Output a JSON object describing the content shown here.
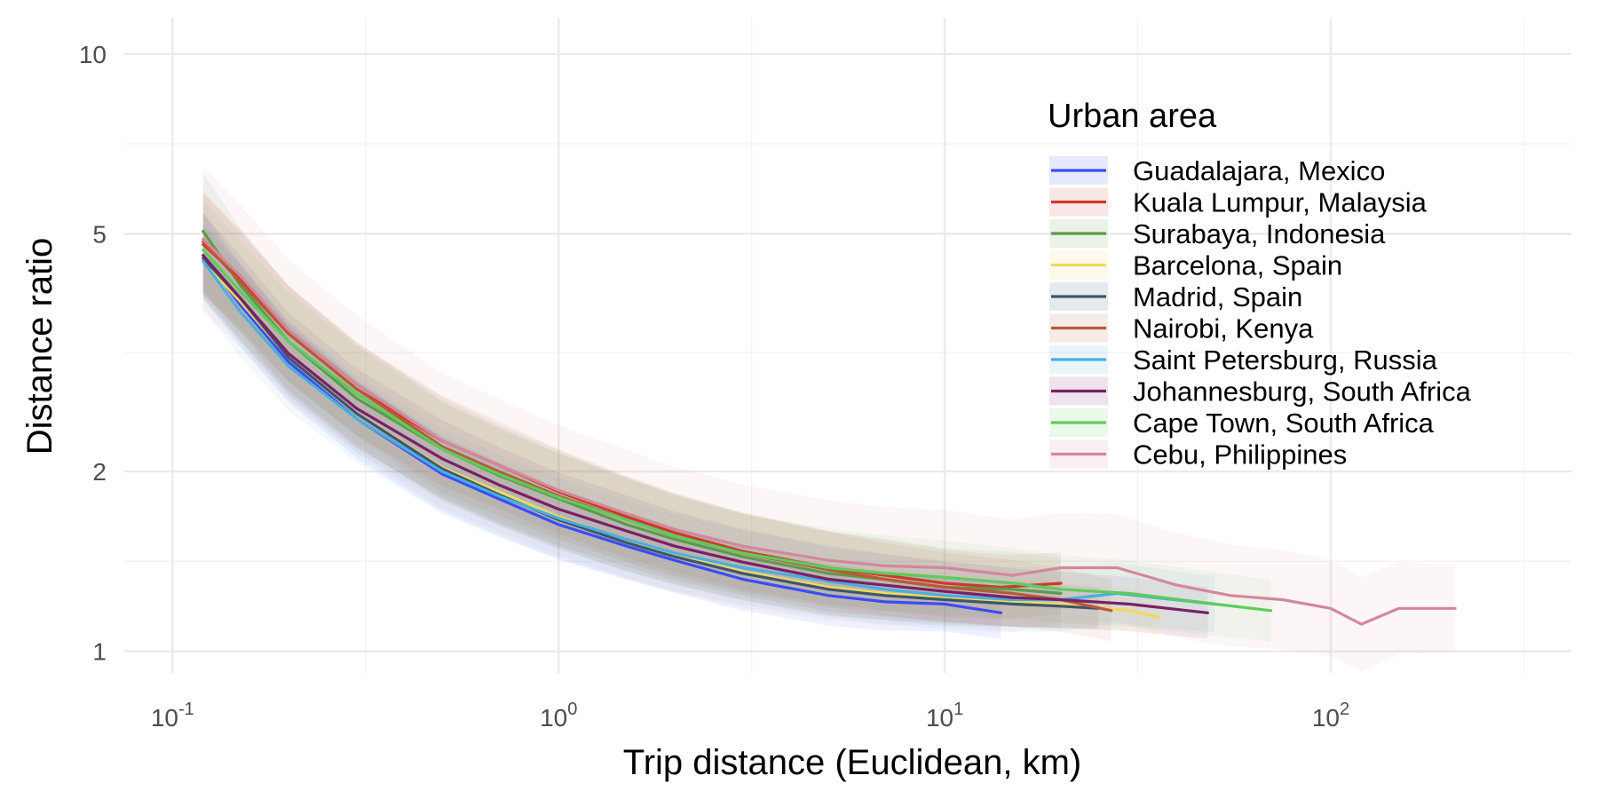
{
  "chart_data": {
    "type": "line",
    "title": "",
    "xlabel": "Trip distance (Euclidean, km)",
    "ylabel": "Distance ratio",
    "x_scale": "log10",
    "y_scale": "log10",
    "xlim": [
      0.075,
      420
    ],
    "ylim": [
      0.92,
      11.5
    ],
    "grid": true,
    "legend_title": "Urban area",
    "legend_position": "top-right (inside plot)",
    "x_ticks": [
      {
        "value": 0.1,
        "base": "10",
        "exp": "-1"
      },
      {
        "value": 1,
        "base": "10",
        "exp": "0"
      },
      {
        "value": 10,
        "base": "10",
        "exp": "1"
      },
      {
        "value": 100,
        "base": "10",
        "exp": "2"
      }
    ],
    "y_ticks": [
      {
        "value": 1,
        "label": "1"
      },
      {
        "value": 2,
        "label": "2"
      },
      {
        "value": 5,
        "label": "5"
      },
      {
        "value": 10,
        "label": "10"
      }
    ],
    "series": [
      {
        "name": "Guadalajara, Mexico",
        "color": "#3b4cf5",
        "x": [
          0.12,
          0.15,
          0.2,
          0.3,
          0.5,
          0.7,
          1,
          1.5,
          2,
          3,
          5,
          7,
          10,
          14
        ],
        "y": [
          4.6,
          3.8,
          3.05,
          2.45,
          1.98,
          1.8,
          1.63,
          1.5,
          1.42,
          1.32,
          1.24,
          1.21,
          1.2,
          1.16
        ],
        "band_width": 0.1
      },
      {
        "name": "Kuala Lumpur, Malaysia",
        "color": "#cc3a2a",
        "x": [
          0.12,
          0.15,
          0.2,
          0.3,
          0.5,
          0.7,
          1,
          1.5,
          2,
          3,
          5,
          7,
          10,
          14,
          20
        ],
        "y": [
          4.8,
          4.2,
          3.4,
          2.75,
          2.25,
          2.05,
          1.85,
          1.68,
          1.58,
          1.47,
          1.38,
          1.34,
          1.3,
          1.28,
          1.3
        ],
        "band_width": 0.12
      },
      {
        "name": "Surabaya, Indonesia",
        "color": "#5c9a4c",
        "x": [
          0.12,
          0.15,
          0.2,
          0.3,
          0.5,
          0.7,
          1,
          1.5,
          2,
          3,
          5,
          7,
          10,
          15,
          20
        ],
        "y": [
          5.05,
          4.1,
          3.3,
          2.65,
          2.18,
          1.97,
          1.8,
          1.63,
          1.54,
          1.44,
          1.35,
          1.32,
          1.28,
          1.27,
          1.25
        ],
        "band_width": 0.14
      },
      {
        "name": "Barcelona, Spain",
        "color": "#f0d960",
        "x": [
          0.12,
          0.15,
          0.2,
          0.3,
          0.5,
          0.7,
          1,
          1.5,
          2,
          3,
          5,
          7,
          10,
          15,
          20,
          30,
          36
        ],
        "y": [
          4.5,
          3.85,
          3.1,
          2.5,
          2.03,
          1.85,
          1.68,
          1.53,
          1.45,
          1.36,
          1.28,
          1.25,
          1.23,
          1.21,
          1.2,
          1.17,
          1.14
        ],
        "band_width": 0.08
      },
      {
        "name": "Madrid, Spain",
        "color": "#3d566e",
        "x": [
          0.12,
          0.15,
          0.2,
          0.3,
          0.5,
          0.7,
          1,
          1.5,
          2,
          3,
          5,
          7,
          10,
          15,
          20,
          25
        ],
        "y": [
          4.55,
          3.9,
          3.1,
          2.5,
          2.02,
          1.83,
          1.66,
          1.52,
          1.44,
          1.35,
          1.27,
          1.24,
          1.22,
          1.2,
          1.19,
          1.18
        ],
        "band_width": 0.08
      },
      {
        "name": "Nairobi, Kenya",
        "color": "#b85a35",
        "x": [
          0.12,
          0.15,
          0.2,
          0.3,
          0.5,
          0.7,
          1,
          1.5,
          2,
          3,
          5,
          7,
          10,
          15,
          20,
          27
        ],
        "y": [
          4.85,
          4.15,
          3.4,
          2.75,
          2.2,
          2.0,
          1.82,
          1.66,
          1.56,
          1.46,
          1.37,
          1.32,
          1.28,
          1.25,
          1.22,
          1.17
        ],
        "band_width": 0.12
      },
      {
        "name": "Saint Petersburg, Russia",
        "color": "#4aaee0",
        "x": [
          0.12,
          0.15,
          0.2,
          0.3,
          0.5,
          0.7,
          1,
          1.5,
          2,
          3,
          5,
          7,
          10,
          15,
          20,
          28,
          35,
          50
        ],
        "y": [
          4.5,
          3.7,
          3.0,
          2.45,
          2.0,
          1.82,
          1.67,
          1.54,
          1.46,
          1.38,
          1.31,
          1.27,
          1.24,
          1.22,
          1.22,
          1.25,
          1.23,
          1.2
        ],
        "band_width": 0.11
      },
      {
        "name": "Johannesburg, South Africa",
        "color": "#7b1f68",
        "x": [
          0.12,
          0.15,
          0.2,
          0.3,
          0.5,
          0.7,
          1,
          1.5,
          2,
          3,
          5,
          7,
          10,
          15,
          20,
          30,
          48
        ],
        "y": [
          4.6,
          3.9,
          3.15,
          2.55,
          2.1,
          1.9,
          1.73,
          1.59,
          1.5,
          1.41,
          1.32,
          1.29,
          1.26,
          1.23,
          1.22,
          1.2,
          1.16
        ],
        "band_width": 0.1
      },
      {
        "name": "Cape Town, South Africa",
        "color": "#5dcc5a",
        "x": [
          0.12,
          0.15,
          0.2,
          0.3,
          0.5,
          0.7,
          1,
          1.5,
          2,
          3,
          5,
          7,
          10,
          15,
          20,
          30,
          50,
          70
        ],
        "y": [
          4.7,
          4.0,
          3.3,
          2.7,
          2.18,
          1.98,
          1.81,
          1.66,
          1.56,
          1.46,
          1.38,
          1.35,
          1.33,
          1.3,
          1.27,
          1.25,
          1.2,
          1.17
        ],
        "band_width": 0.12
      },
      {
        "name": "Cebu, Philippines",
        "color": "#d4879c",
        "x": [
          0.12,
          0.15,
          0.2,
          0.3,
          0.5,
          0.7,
          1,
          1.5,
          2,
          3,
          5,
          7,
          10,
          15,
          20,
          28,
          40,
          55,
          75,
          100,
          120,
          150,
          210
        ],
        "y": [
          4.9,
          4.25,
          3.45,
          2.8,
          2.25,
          2.05,
          1.86,
          1.7,
          1.6,
          1.5,
          1.42,
          1.39,
          1.38,
          1.34,
          1.38,
          1.38,
          1.29,
          1.24,
          1.22,
          1.18,
          1.11,
          1.18,
          1.18
        ],
        "band_width": 0.18
      }
    ]
  }
}
